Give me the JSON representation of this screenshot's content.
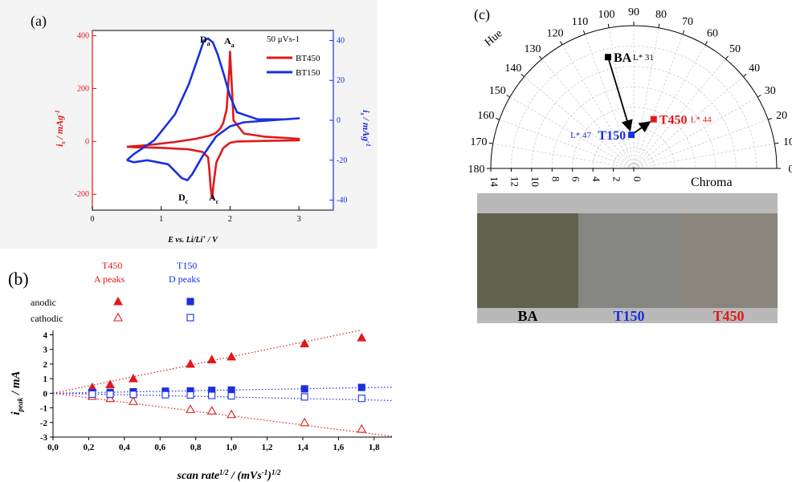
{
  "colors": {
    "red": "#e11919",
    "blue": "#1a2fe0",
    "swatch_bg": "#b9b9b9",
    "swatch_ba": "#63624f",
    "swatch_t150": "#858682",
    "swatch_t450": "#8a857c"
  },
  "panel_a": {
    "label": "(a)",
    "annotations": {
      "Da": "D",
      "Da_sub": "a",
      "Aa": "A",
      "Aa_sub": "a",
      "Dc": "D",
      "Dc_sub": "c",
      "Ac": "A",
      "Ac_sub": "c"
    },
    "chart_data": {
      "type": "line",
      "xlabel": "E vs. Li/Li+ / V",
      "ylabel_left": "i_s / mAg-1",
      "ylabel_right": "i_s / mAg-1",
      "xlim": [
        0,
        3.5
      ],
      "ylim_left": [
        -260,
        420
      ],
      "ylim_right": [
        -45,
        45
      ],
      "x_ticks": [
        "0",
        "1",
        "2",
        "3"
      ],
      "y_left_ticks": [
        "400",
        "200",
        "0",
        "-200"
      ],
      "y_right_ticks": [
        "40",
        "20",
        "0",
        "-20",
        "-40"
      ],
      "legend": {
        "title": "50 μVs-1",
        "position": "top-right"
      },
      "series": [
        {
          "name": "BT450",
          "axis": "left",
          "x": [
            0.5,
            0.8,
            1.2,
            1.5,
            1.7,
            1.78,
            1.82,
            1.86,
            1.9,
            1.95,
            1.97,
            1.99,
            2.0,
            2.02,
            2.05,
            2.2,
            2.5,
            3.0,
            3.0,
            2.5,
            2.1,
            2.0,
            1.9,
            1.8,
            1.76,
            1.74,
            1.72,
            1.7,
            1.68,
            1.6,
            1.4,
            1.0,
            0.6,
            0.5
          ],
          "y": [
            -20,
            -14,
            -2,
            10,
            22,
            30,
            38,
            50,
            70,
            120,
            200,
            280,
            340,
            240,
            80,
            30,
            18,
            10,
            4,
            2,
            0,
            -5,
            -25,
            -80,
            -160,
            -215,
            -180,
            -110,
            -60,
            -40,
            -30,
            -24,
            -22,
            -20
          ]
        },
        {
          "name": "BT150",
          "axis": "right",
          "x": [
            0.5,
            0.6,
            0.9,
            1.2,
            1.4,
            1.55,
            1.62,
            1.68,
            1.75,
            1.82,
            1.9,
            2.0,
            2.1,
            2.4,
            2.8,
            3.0,
            3.0,
            2.6,
            2.2,
            2.0,
            1.8,
            1.6,
            1.45,
            1.38,
            1.3,
            1.1,
            0.8,
            0.6,
            0.5
          ],
          "y": [
            -20,
            -17,
            -10,
            3,
            18,
            33,
            40,
            41,
            39,
            33,
            24,
            12,
            4,
            0.5,
            0.5,
            1,
            1,
            0,
            -1,
            -3,
            -8,
            -18,
            -27,
            -30,
            -29,
            -22,
            -20,
            -21,
            -20
          ]
        }
      ]
    }
  },
  "panel_b": {
    "label": "(b)",
    "legend": {
      "t450": "T450",
      "a_peaks": "A  peaks",
      "t150": "T150",
      "d_peaks": "D  peaks",
      "anodic": "anodic",
      "cathodic": "cathodic"
    },
    "chart_data": {
      "type": "scatter",
      "xlabel": "scan rate1/2 / (mVs-1)1/2",
      "ylabel": "i_peak / mA",
      "xlim": [
        0,
        1.9
      ],
      "ylim": [
        -3,
        4.3
      ],
      "x_ticks": [
        "0,0",
        "0,2",
        "0,4",
        "0,6",
        "0,8",
        "1,0",
        "1,2",
        "1,4",
        "1,6",
        "1,8"
      ],
      "y_ticks": [
        "4",
        "3",
        "2",
        "1",
        "0",
        "-1",
        "-2",
        "-3"
      ],
      "series": [
        {
          "name": "T450 anodic",
          "marker": "filled-triangle",
          "color": "red",
          "x": [
            0.22,
            0.32,
            0.45,
            0.77,
            0.89,
            1.0,
            1.41,
            1.73
          ],
          "y": [
            0.4,
            0.6,
            1.0,
            2.0,
            2.3,
            2.5,
            3.4,
            3.8
          ]
        },
        {
          "name": "T450 cathodic",
          "marker": "open-triangle",
          "color": "red",
          "x": [
            0.22,
            0.32,
            0.45,
            0.77,
            0.89,
            1.0,
            1.41,
            1.73
          ],
          "y": [
            -0.2,
            -0.35,
            -0.55,
            -1.1,
            -1.2,
            -1.45,
            -2.0,
            -2.45
          ]
        },
        {
          "name": "T150 anodic",
          "marker": "filled-square",
          "color": "blue",
          "x": [
            0.22,
            0.32,
            0.45,
            0.63,
            0.77,
            0.89,
            1.0,
            1.41,
            1.73
          ],
          "y": [
            0.05,
            0.06,
            0.1,
            0.14,
            0.16,
            0.2,
            0.22,
            0.3,
            0.4
          ]
        },
        {
          "name": "T150 cathodic",
          "marker": "open-square",
          "color": "blue",
          "x": [
            0.22,
            0.32,
            0.45,
            0.63,
            0.77,
            0.89,
            1.0,
            1.41,
            1.73
          ],
          "y": [
            -0.06,
            -0.07,
            -0.08,
            -0.1,
            -0.12,
            -0.15,
            -0.18,
            -0.25,
            -0.35
          ]
        }
      ],
      "fits": [
        {
          "color": "red",
          "slope": 2.5
        },
        {
          "color": "red",
          "slope": -1.55
        },
        {
          "color": "blue",
          "slope": 0.22
        },
        {
          "color": "blue",
          "slope": -0.26
        }
      ]
    }
  },
  "panel_c": {
    "label": "(c)",
    "hue_label": "Hue",
    "chroma_label": "Chroma",
    "chart_data": {
      "type": "polar-scatter",
      "angle_ticks": [
        "0",
        "10",
        "20",
        "30",
        "40",
        "50",
        "60",
        "70",
        "80",
        "90",
        "100",
        "110",
        "120",
        "130",
        "140",
        "150",
        "160",
        "170",
        "180"
      ],
      "radial_ticks": [
        "14",
        "12",
        "10",
        "8",
        "6",
        "4",
        "2",
        "0"
      ],
      "rlim": [
        0,
        14
      ],
      "points": [
        {
          "name": "BA",
          "hue": 103,
          "chroma": 11.2,
          "lightness_label": "L* 31",
          "color": "black"
        },
        {
          "name": "T150",
          "hue": 94,
          "chroma": 3.3,
          "lightness_label": "L* 47",
          "color": "blue"
        },
        {
          "name": "T450",
          "hue": 68,
          "chroma": 5.2,
          "lightness_label": "L* 44",
          "color": "red"
        }
      ],
      "arrows": [
        [
          "BA",
          "T150"
        ],
        [
          "T150",
          "T450"
        ]
      ]
    },
    "swatches": [
      {
        "name": "BA",
        "color": "#63624f",
        "label_color": "#000000"
      },
      {
        "name": "T150",
        "color": "#858682",
        "label_color": "#1a2fe0"
      },
      {
        "name": "T450",
        "color": "#8a857c",
        "label_color": "#e11919"
      }
    ]
  }
}
